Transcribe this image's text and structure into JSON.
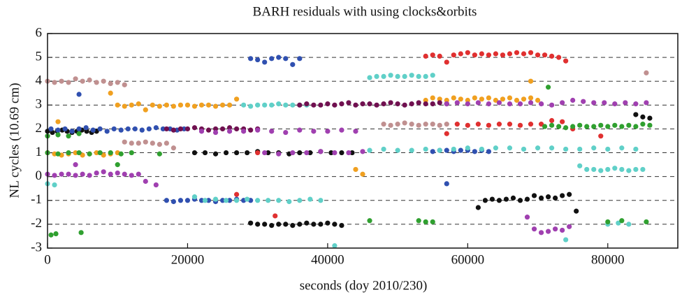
{
  "chart_data": {
    "type": "scatter",
    "title": "BARH residuals with using clocks&orbits",
    "xlabel": "seconds (doy 2010/230)",
    "ylabel": "NL cycles (10.69 cm)",
    "xlim": [
      0,
      90000
    ],
    "ylim": [
      -3,
      6
    ],
    "xticks": [
      0,
      20000,
      40000,
      60000,
      80000
    ],
    "yticks": [
      -3,
      -2,
      -1,
      0,
      1,
      2,
      3,
      4,
      5,
      6
    ],
    "grid": true,
    "series": [
      {
        "color": "#111111",
        "x": [
          0,
          700,
          1400,
          2100,
          2800,
          3500,
          4200,
          4900,
          5600,
          6300,
          7000,
          21000,
          22500,
          24000,
          25500,
          27000,
          28500,
          30000,
          31500,
          33000,
          34500,
          36000,
          37500,
          39000,
          40500,
          42000,
          43500,
          29000,
          30000,
          31000,
          32000,
          33000,
          34000,
          35000,
          36000,
          37000,
          38000,
          39000,
          40000,
          41000,
          42000,
          61500,
          62500,
          63500,
          64500,
          65500,
          66500,
          67500,
          68500,
          69500,
          70500,
          71500,
          72500,
          73500,
          74500,
          75500,
          84000,
          85000,
          86000
        ],
        "y": [
          1.9,
          1.85,
          1.9,
          1.95,
          1.9,
          1.85,
          1.9,
          1.95,
          1.9,
          1.85,
          1.9,
          1,
          1,
          0.95,
          1,
          1,
          1,
          1.05,
          1,
          1,
          0.95,
          1,
          1,
          1.05,
          1,
          1,
          1,
          -1.95,
          -2,
          -2,
          -2.05,
          -2,
          -2,
          -2.05,
          -2,
          -1.95,
          -2,
          -2,
          -1.95,
          -2,
          -2.05,
          -1.3,
          -1,
          -0.95,
          -1,
          -0.95,
          -0.9,
          -1,
          -0.95,
          -0.8,
          -0.9,
          -0.85,
          -0.9,
          -0.8,
          -0.75,
          -1.45,
          2.6,
          2.5,
          2.45
        ]
      },
      {
        "color": "#e03030",
        "x": [
          54000,
          55000,
          56000,
          57000,
          58000,
          59000,
          60000,
          61000,
          62000,
          63000,
          64000,
          65000,
          66000,
          67000,
          68000,
          69000,
          70000,
          71000,
          72000,
          73000,
          74000,
          57000,
          58500,
          60000,
          61500,
          63000,
          64500,
          66000,
          67500,
          69000,
          70500,
          72000,
          73500,
          75000,
          30000,
          32500,
          27000,
          79000
        ],
        "y": [
          5.05,
          5.1,
          5.05,
          4.8,
          5.1,
          5.15,
          5.2,
          5.1,
          5.15,
          5.1,
          5.15,
          5.1,
          5.15,
          5.2,
          5.15,
          5.2,
          5.1,
          5.1,
          5.05,
          5,
          4.85,
          1.8,
          2.2,
          2.15,
          2.2,
          2.15,
          2.2,
          2.2,
          2.15,
          2.2,
          2.2,
          2.35,
          2.3,
          2,
          1,
          -1.65,
          -0.75,
          1.7
        ]
      },
      {
        "color": "#3050b0",
        "x": [
          29000,
          30000,
          31000,
          32000,
          33000,
          34000,
          35000,
          36000,
          500,
          1500,
          2500,
          3500,
          4500,
          5500,
          6500,
          7500,
          8500,
          9500,
          10500,
          11500,
          12500,
          13500,
          14500,
          15500,
          16500,
          17500,
          18500,
          19500,
          17000,
          18000,
          19000,
          20000,
          21000,
          22000,
          23000,
          24000,
          25000,
          26000,
          27000,
          28000,
          29000,
          55000,
          56000,
          57000,
          58000,
          59000,
          60000,
          61000,
          62000,
          63000,
          4500,
          57000
        ],
        "y": [
          4.95,
          4.9,
          4.8,
          4.95,
          5,
          4.95,
          4.7,
          4.95,
          2,
          1.95,
          2,
          1.9,
          2,
          2.05,
          1.95,
          2,
          1.9,
          2,
          1.95,
          2,
          2,
          1.95,
          2,
          2.05,
          2,
          2,
          1.95,
          2,
          -1,
          -1.05,
          -1,
          -1,
          -0.95,
          -1,
          -1,
          -1.05,
          -1,
          -1,
          -0.95,
          -1,
          -1,
          1.05,
          1.1,
          1.1,
          1.05,
          1.1,
          1.1,
          1.05,
          1.1,
          1.05,
          3.45,
          -0.3
        ]
      },
      {
        "color": "#60d0c8",
        "x": [
          46000,
          47000,
          48000,
          49000,
          50000,
          51000,
          52000,
          53000,
          54000,
          55000,
          28000,
          29000,
          30000,
          31000,
          32000,
          33000,
          34000,
          35000,
          36000,
          37000,
          46000,
          48000,
          50000,
          52000,
          54000,
          56000,
          58000,
          60000,
          62000,
          64000,
          66000,
          68000,
          70000,
          72000,
          74000,
          76000,
          78000,
          80000,
          82000,
          84000,
          76000,
          77000,
          78000,
          79000,
          80000,
          81000,
          82000,
          83000,
          84000,
          85000,
          21000,
          22500,
          24000,
          25500,
          27000,
          28500,
          30000,
          31500,
          33000,
          34500,
          36000,
          37500,
          39000,
          80000,
          81500,
          83000,
          0,
          1000,
          74000,
          41000
        ],
        "y": [
          4.15,
          4.2,
          4.2,
          4.25,
          4.2,
          4.2,
          4.25,
          4.2,
          4.2,
          4.25,
          3,
          2.95,
          3,
          3,
          3,
          3.05,
          3,
          3,
          3,
          3,
          1.1,
          1.15,
          1.1,
          1.1,
          1.15,
          1.1,
          1.15,
          1.2,
          1.15,
          1.2,
          1.2,
          1.15,
          1.2,
          1.2,
          1.15,
          1.15,
          1.2,
          1.15,
          1.2,
          1.15,
          0.45,
          0.3,
          0.3,
          0.25,
          0.3,
          0.35,
          0.3,
          0.25,
          0.3,
          0.3,
          -0.85,
          -1,
          -0.95,
          -1,
          -1,
          -0.95,
          -1,
          -1,
          -1,
          -1.05,
          -1,
          -0.95,
          -1,
          -2,
          -1.95,
          -2,
          -0.3,
          -0.35,
          -2.65,
          -2.9
        ]
      },
      {
        "color": "#f0a020",
        "x": [
          10000,
          11000,
          12000,
          13000,
          14000,
          15000,
          16000,
          17000,
          18000,
          19000,
          20000,
          21000,
          22000,
          23000,
          24000,
          25000,
          26000,
          27000,
          54000,
          55000,
          56000,
          57000,
          58000,
          59000,
          60000,
          61000,
          62000,
          63000,
          64000,
          65000,
          66000,
          67000,
          68000,
          69000,
          70000,
          0,
          1000,
          2000,
          3000,
          4000,
          5000,
          6000,
          7000,
          8000,
          9000,
          10000,
          69000,
          44000,
          45000,
          1500,
          9000
        ],
        "y": [
          3,
          2.95,
          3,
          3.05,
          2.8,
          3,
          2.95,
          3,
          2.95,
          3,
          3,
          2.95,
          3,
          3,
          2.95,
          3,
          3,
          3.25,
          3.2,
          3.3,
          3.25,
          3.2,
          3.3,
          3.25,
          3.2,
          3.3,
          3.25,
          3.3,
          3.2,
          3.25,
          3.3,
          3.2,
          3.25,
          3.3,
          3.2,
          1,
          0.95,
          0.9,
          0.95,
          1,
          0.9,
          0.95,
          1,
          0.9,
          0.95,
          1,
          4,
          0.3,
          0.1,
          2.3,
          3.5
        ]
      },
      {
        "color": "#701050",
        "x": [
          17000,
          18000,
          19000,
          20000,
          21000,
          22000,
          23000,
          24000,
          25000,
          26000,
          27000,
          28000,
          29000,
          30000,
          36000,
          37000,
          38000,
          39000,
          40000,
          41000,
          42000,
          43000,
          44000,
          45000,
          46000,
          47000,
          48000,
          49000,
          50000,
          51000,
          52000,
          53000,
          54000,
          55000,
          56000,
          57000
        ],
        "y": [
          2,
          1.95,
          2,
          2,
          2.05,
          2,
          1.95,
          2,
          2,
          2.05,
          2,
          2,
          1.95,
          2,
          3,
          3.05,
          3,
          3,
          3.05,
          3,
          3.05,
          3.1,
          3,
          3.05,
          3.05,
          3,
          3.05,
          3.1,
          3.05,
          3,
          3.05,
          3.1,
          3.05,
          3.05,
          3.1,
          3.05
        ]
      },
      {
        "color": "#a040b0",
        "x": [
          57000,
          58500,
          60000,
          61500,
          63000,
          64500,
          66000,
          67500,
          69000,
          70500,
          72000,
          73500,
          75000,
          76500,
          78000,
          79500,
          81000,
          82500,
          84000,
          85500,
          22000,
          24000,
          26000,
          28000,
          30000,
          32000,
          34000,
          36000,
          38000,
          40000,
          42000,
          44000,
          0,
          1000,
          2000,
          3000,
          4000,
          5000,
          6000,
          7000,
          8000,
          9000,
          10000,
          11000,
          12000,
          13000,
          14000,
          31000,
          33000,
          35000,
          37000,
          39000,
          41000,
          43000,
          45000,
          68500,
          69500,
          70500,
          71500,
          72500,
          73500,
          74500,
          15500,
          4000
        ],
        "y": [
          3.05,
          3.1,
          3.05,
          3.1,
          3.05,
          3.1,
          3.05,
          3.05,
          3.1,
          3.05,
          3,
          3.1,
          3.2,
          3.15,
          3.1,
          3.1,
          3.05,
          3.1,
          3.05,
          3.1,
          1.9,
          1.85,
          1.9,
          1.9,
          1.95,
          1.9,
          1.85,
          1.95,
          1.9,
          1.9,
          1.95,
          1.9,
          0.1,
          0.05,
          0.1,
          0.1,
          0.05,
          0.1,
          0.05,
          0.15,
          0.2,
          0.1,
          0.15,
          0.1,
          0.05,
          0.1,
          -0.2,
          1,
          0.95,
          1,
          1,
          1.05,
          1,
          1,
          1.05,
          -1.7,
          -2.2,
          -2.35,
          -2.3,
          -2.2,
          -2.25,
          -2.1,
          -0.35,
          0.5
        ]
      },
      {
        "color": "#c09090",
        "x": [
          0,
          1000,
          2000,
          3000,
          4000,
          5000,
          6000,
          7000,
          8000,
          9000,
          10000,
          11000,
          48000,
          49000,
          50000,
          51000,
          52000,
          53000,
          54000,
          55000,
          56000,
          57000,
          11000,
          12000,
          13000,
          14000,
          15000,
          16000,
          17000,
          18000,
          85500
        ],
        "y": [
          4,
          3.95,
          4,
          3.95,
          4.1,
          4,
          4.05,
          3.95,
          4,
          3.9,
          3.95,
          3.85,
          2.2,
          2.15,
          2.2,
          2.25,
          2.2,
          2.15,
          2.2,
          2.2,
          2.15,
          2.2,
          1.45,
          1.4,
          1.4,
          1.45,
          1.4,
          1.35,
          1.4,
          1.2,
          4.35
        ]
      },
      {
        "color": "#30a030",
        "x": [
          71000,
          72000,
          73000,
          74000,
          75000,
          76000,
          77000,
          78000,
          79000,
          80000,
          81000,
          82000,
          83000,
          84000,
          85000,
          86000,
          0,
          1500,
          3000,
          4500,
          6000,
          7500,
          9000,
          10500,
          12000,
          0,
          1500,
          3000,
          4500,
          46000,
          53000,
          54000,
          55000,
          80000,
          82000,
          85500,
          71500,
          500,
          1200,
          4800,
          10000,
          16000
        ],
        "y": [
          2.1,
          2.15,
          2.1,
          2.05,
          2.1,
          2.15,
          2.1,
          2.1,
          2.15,
          2.1,
          2.15,
          2.1,
          2.15,
          2.1,
          2.2,
          2.15,
          1,
          0.95,
          1,
          1,
          0.95,
          1,
          1,
          0.95,
          1,
          1.7,
          1.75,
          1.7,
          1.8,
          -1.85,
          -1.85,
          -1.9,
          -1.9,
          -1.9,
          -1.85,
          -1.9,
          3.75,
          -2.45,
          -2.4,
          -2.35,
          0.5,
          0.95
        ]
      }
    ]
  }
}
